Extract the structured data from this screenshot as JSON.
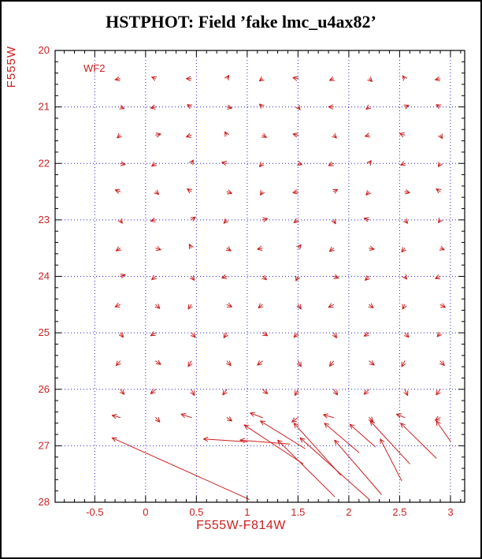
{
  "title": "HSTPHOT: Field ’fake lmc_u4ax82’",
  "annotation": "WF2",
  "colors": {
    "accent": "#cc2020",
    "grid": "#2222cc",
    "frame": "#000000",
    "background": "#ffffff"
  },
  "chart_data": {
    "type": "scatter",
    "variant": "quiver-vector-field",
    "title": "HSTPHOT: Field ’fake lmc_u4ax82’",
    "annotation": "WF2",
    "xlabel": "F555W-F814W",
    "ylabel": "F555W",
    "xlim": [
      -0.89,
      3.14
    ],
    "ylim": [
      20,
      28
    ],
    "y_inverted": true,
    "grid": true,
    "legend": false,
    "xticks": [
      -0.5,
      0,
      0.5,
      1,
      1.5,
      2,
      2.5,
      3
    ],
    "xtick_labels": [
      "-0.5",
      "0",
      "0.5",
      "1",
      "1.5",
      "2",
      "2.5",
      "3"
    ],
    "yticks": [
      20,
      21,
      22,
      23,
      24,
      25,
      26,
      27,
      28
    ],
    "ytick_labels": [
      "20",
      "21",
      "22",
      "23",
      "24",
      "25",
      "26",
      "27",
      "28"
    ],
    "x_minor_step": 0.1,
    "y_minor_step": 0.2,
    "vectors_format": "[x, y, dx, dy] — tail at (x,y), arrowhead at (x+dx, y+dy); x = F555W-F814W color, y = F555W magnitude",
    "vectors": [
      [
        -0.25,
        20.5,
        -0.05,
        0.02
      ],
      [
        0.1,
        20.5,
        -0.04,
        -0.03
      ],
      [
        0.45,
        20.5,
        -0.05,
        0
      ],
      [
        0.8,
        20.5,
        0.02,
        -0.06
      ],
      [
        1.15,
        20.5,
        -0.03,
        0.04
      ],
      [
        1.5,
        20.5,
        -0.05,
        -0.02
      ],
      [
        1.85,
        20.5,
        -0.04,
        0.03
      ],
      [
        2.2,
        20.5,
        0.03,
        0.05
      ],
      [
        2.55,
        20.5,
        -0.02,
        -0.05
      ],
      [
        2.9,
        20.5,
        -0.05,
        0.02
      ],
      [
        -0.25,
        21,
        0.04,
        0.03
      ],
      [
        0.1,
        21,
        -0.05,
        0.02
      ],
      [
        0.45,
        21,
        -0.04,
        -0.04
      ],
      [
        0.8,
        21,
        0.05,
        0.02
      ],
      [
        1.15,
        21,
        -0.03,
        -0.05
      ],
      [
        1.5,
        21,
        0.02,
        0.05
      ],
      [
        1.85,
        21,
        -0.05,
        0
      ],
      [
        2.2,
        21,
        -0.03,
        0.04
      ],
      [
        2.55,
        21,
        0.04,
        -0.03
      ],
      [
        2.9,
        21,
        -0.04,
        -0.04
      ],
      [
        -0.25,
        21.5,
        -0.03,
        0.05
      ],
      [
        0.1,
        21.5,
        0.05,
        -0.02
      ],
      [
        0.45,
        21.5,
        -0.05,
        0.03
      ],
      [
        0.8,
        21.5,
        -0.02,
        -0.06
      ],
      [
        1.15,
        21.5,
        0.04,
        0.04
      ],
      [
        1.5,
        21.5,
        -0.05,
        -0.02
      ],
      [
        1.85,
        21.5,
        0.03,
        0.05
      ],
      [
        2.2,
        21.5,
        -0.04,
        0.02
      ],
      [
        2.55,
        21.5,
        -0.05,
        -0.03
      ],
      [
        2.9,
        21.5,
        0.02,
        0.06
      ],
      [
        -0.25,
        22,
        0.05,
        0.02
      ],
      [
        0.1,
        22,
        -0.04,
        0.05
      ],
      [
        0.45,
        22,
        0.02,
        -0.06
      ],
      [
        0.8,
        22,
        -0.05,
        -0.02
      ],
      [
        1.15,
        22,
        -0.03,
        0.06
      ],
      [
        1.5,
        22,
        0.04,
        0.02
      ],
      [
        1.85,
        22,
        -0.05,
        0.04
      ],
      [
        2.2,
        22,
        0.02,
        -0.05
      ],
      [
        2.55,
        22,
        -0.04,
        0.03
      ],
      [
        2.9,
        22,
        -0.02,
        0.06
      ],
      [
        -0.25,
        22.5,
        -0.05,
        -0.03
      ],
      [
        0.1,
        22.5,
        0.03,
        0.05
      ],
      [
        0.45,
        22.5,
        -0.04,
        -0.05
      ],
      [
        0.8,
        22.5,
        0.05,
        0.03
      ],
      [
        1.15,
        22.5,
        -0.02,
        0.06
      ],
      [
        1.5,
        22.5,
        -0.05,
        0.02
      ],
      [
        1.85,
        22.5,
        0.04,
        -0.04
      ],
      [
        2.2,
        22.5,
        -0.03,
        0.06
      ],
      [
        2.55,
        22.5,
        0.05,
        0.02
      ],
      [
        2.9,
        22.5,
        -0.04,
        -0.05
      ],
      [
        -0.25,
        23,
        0.02,
        0.06
      ],
      [
        0.1,
        23,
        -0.05,
        0.02
      ],
      [
        0.45,
        23,
        0.04,
        -0.05
      ],
      [
        0.8,
        23,
        -0.03,
        0.06
      ],
      [
        1.15,
        23,
        0.05,
        -0.02
      ],
      [
        1.5,
        23,
        -0.04,
        0.05
      ],
      [
        1.85,
        23,
        0.02,
        0.07
      ],
      [
        2.2,
        23,
        -0.05,
        -0.03
      ],
      [
        2.55,
        23,
        0.03,
        0.06
      ],
      [
        2.9,
        23,
        -0.02,
        0.05
      ],
      [
        -0.25,
        23.5,
        -0.04,
        0.05
      ],
      [
        0.1,
        23.5,
        0.05,
        0.03
      ],
      [
        0.45,
        23.5,
        -0.02,
        -0.07
      ],
      [
        0.8,
        23.5,
        0.04,
        0.05
      ],
      [
        1.15,
        23.5,
        -0.05,
        0.02
      ],
      [
        1.5,
        23.5,
        0.03,
        -0.06
      ],
      [
        1.85,
        23.5,
        -0.04,
        0.06
      ],
      [
        2.2,
        23.5,
        0.05,
        0.02
      ],
      [
        2.55,
        23.5,
        -0.03,
        0.07
      ],
      [
        2.9,
        23.5,
        0.04,
        0.03
      ],
      [
        -0.25,
        24,
        0.05,
        -0.03
      ],
      [
        0.1,
        24,
        -0.04,
        0.06
      ],
      [
        0.45,
        24,
        0.03,
        0.07
      ],
      [
        0.8,
        24,
        -0.05,
        0.03
      ],
      [
        1.15,
        24,
        0.04,
        0.06
      ],
      [
        1.5,
        24,
        -0.02,
        0.08
      ],
      [
        1.85,
        24,
        0.05,
        0.03
      ],
      [
        2.2,
        24,
        -0.04,
        0.07
      ],
      [
        2.55,
        24,
        0.02,
        0.05
      ],
      [
        2.9,
        24,
        -0.05,
        0.04
      ],
      [
        -0.25,
        24.5,
        -0.05,
        0.04
      ],
      [
        0.1,
        24.5,
        0.04,
        0.07
      ],
      [
        0.45,
        24.5,
        -0.03,
        0.08
      ],
      [
        0.8,
        24.5,
        0.05,
        0.04
      ],
      [
        1.15,
        24.5,
        -0.04,
        0.06
      ],
      [
        1.5,
        24.5,
        0.03,
        0.08
      ],
      [
        1.85,
        24.5,
        -0.05,
        0.05
      ],
      [
        2.2,
        24.5,
        0.04,
        0.06
      ],
      [
        2.55,
        24.5,
        -0.02,
        0.08
      ],
      [
        2.9,
        24.5,
        0.05,
        0.05
      ],
      [
        -0.25,
        25,
        0.03,
        0.08
      ],
      [
        0.1,
        25,
        -0.05,
        0.05
      ],
      [
        0.45,
        25,
        0.04,
        0.08
      ],
      [
        0.8,
        25,
        -0.03,
        0.09
      ],
      [
        1.15,
        25,
        0.05,
        0.05
      ],
      [
        1.5,
        25,
        -0.04,
        0.08
      ],
      [
        1.85,
        25,
        0.03,
        0.09
      ],
      [
        2.2,
        25,
        -0.05,
        0.06
      ],
      [
        2.55,
        25,
        0.04,
        0.08
      ],
      [
        2.9,
        25,
        -0.03,
        0.07
      ],
      [
        -0.25,
        25.5,
        -0.04,
        0.08
      ],
      [
        0.1,
        25.5,
        0.05,
        0.06
      ],
      [
        0.45,
        25.5,
        -0.03,
        0.1
      ],
      [
        0.8,
        25.5,
        0.04,
        0.08
      ],
      [
        1.15,
        25.5,
        -0.05,
        0.07
      ],
      [
        1.5,
        25.5,
        0.03,
        0.1
      ],
      [
        1.85,
        25.5,
        -0.04,
        0.09
      ],
      [
        2.2,
        25.5,
        0.05,
        0.07
      ],
      [
        2.55,
        25.5,
        -0.03,
        0.1
      ],
      [
        2.9,
        25.5,
        0.04,
        0.08
      ],
      [
        -0.25,
        26,
        0.04,
        0.09
      ],
      [
        0.1,
        26,
        -0.05,
        0.08
      ],
      [
        0.45,
        26,
        0.03,
        0.11
      ],
      [
        0.8,
        26,
        -0.04,
        0.1
      ],
      [
        1.15,
        26,
        0.05,
        0.08
      ],
      [
        1.5,
        26,
        -0.03,
        0.11
      ],
      [
        1.85,
        26,
        0.04,
        0.1
      ],
      [
        2.2,
        26,
        -0.05,
        0.09
      ],
      [
        2.55,
        26,
        0.03,
        0.11
      ],
      [
        2.9,
        26,
        -0.04,
        0.1
      ],
      [
        -0.25,
        26.5,
        -0.08,
        -0.04
      ],
      [
        0.1,
        26.5,
        0.04,
        0.08
      ],
      [
        0.45,
        26.5,
        -0.1,
        -0.06
      ],
      [
        0.8,
        26.5,
        0.05,
        0.06
      ],
      [
        1.15,
        26.5,
        -0.12,
        -0.08
      ],
      [
        1.5,
        26.5,
        -0.06,
        0.08
      ],
      [
        1.85,
        26.5,
        -0.1,
        -0.05
      ],
      [
        2.2,
        26.5,
        0.04,
        0.07
      ],
      [
        2.55,
        26.5,
        -0.08,
        -0.06
      ],
      [
        2.9,
        26.5,
        -0.05,
        0.05
      ],
      [
        1.02,
        27.95,
        -1.35,
        -1.09
      ],
      [
        1.0,
        26.93,
        -0.43,
        -0.05
      ],
      [
        1.42,
        26.97,
        -0.49,
        -0.07
      ],
      [
        1.55,
        27.32,
        -0.58,
        -0.69
      ],
      [
        1.57,
        27.05,
        -0.44,
        -0.49
      ],
      [
        1.86,
        27.9,
        -0.56,
        -1.0
      ],
      [
        1.92,
        27.52,
        -0.46,
        -0.92
      ],
      [
        2.2,
        27.95,
        -0.68,
        -1.09
      ],
      [
        2.1,
        27.12,
        -0.34,
        -0.52
      ],
      [
        2.32,
        27.86,
        -0.46,
        -0.96
      ],
      [
        2.26,
        27.02,
        -0.25,
        -0.4
      ],
      [
        2.6,
        27.32,
        -0.39,
        -0.76
      ],
      [
        2.52,
        27.62,
        -0.21,
        -0.74
      ],
      [
        2.86,
        27.22,
        -0.35,
        -0.62
      ],
      [
        3.0,
        26.92,
        -0.14,
        -0.36
      ]
    ]
  }
}
